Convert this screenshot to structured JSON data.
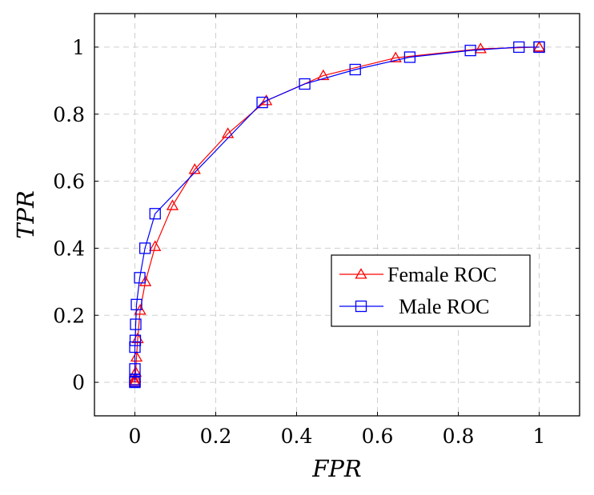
{
  "chart_data": {
    "type": "line",
    "xlabel": "FPR",
    "ylabel": "TPR",
    "xlim": [
      -0.1,
      1.1
    ],
    "ylim": [
      -0.1,
      1.1
    ],
    "xticks": [
      0,
      0.2,
      0.4,
      0.6,
      0.8,
      1
    ],
    "xtick_labels": [
      "0",
      "0.2",
      "0.4",
      "0.6",
      "0.8",
      "1"
    ],
    "yticks": [
      0,
      0.2,
      0.4,
      0.6,
      0.8,
      1
    ],
    "ytick_labels": [
      "0",
      "0.2",
      "0.4",
      "0.6",
      "0.8",
      "1"
    ],
    "grid": true,
    "legend": "center-right",
    "series": [
      {
        "name": "Female ROC",
        "color": "#ff0000",
        "marker": "triangle",
        "x": [
          0,
          0,
          0.001,
          0.002,
          0.004,
          0.007,
          0.013,
          0.026,
          0.05,
          0.093,
          0.148,
          0.23,
          0.325,
          0.466,
          0.645,
          0.855,
          1.0,
          1.0
        ],
        "y": [
          0,
          0.005,
          0.013,
          0.03,
          0.075,
          0.13,
          0.215,
          0.3,
          0.405,
          0.527,
          0.635,
          0.742,
          0.84,
          0.915,
          0.968,
          0.995,
          1.0,
          1.0
        ]
      },
      {
        "name": "Male ROC",
        "color": "#0000ff",
        "marker": "square",
        "x": [
          0,
          0,
          0,
          0,
          0,
          0.001,
          0.002,
          0.004,
          0.012,
          0.025,
          0.05,
          0.315,
          0.42,
          0.545,
          0.68,
          0.83,
          0.95,
          1.0,
          1.0
        ],
        "y": [
          0,
          0.003,
          0.008,
          0.04,
          0.105,
          0.125,
          0.173,
          0.232,
          0.312,
          0.4,
          0.503,
          0.835,
          0.89,
          0.933,
          0.97,
          0.99,
          1.0,
          1.0,
          1.0
        ]
      }
    ]
  }
}
